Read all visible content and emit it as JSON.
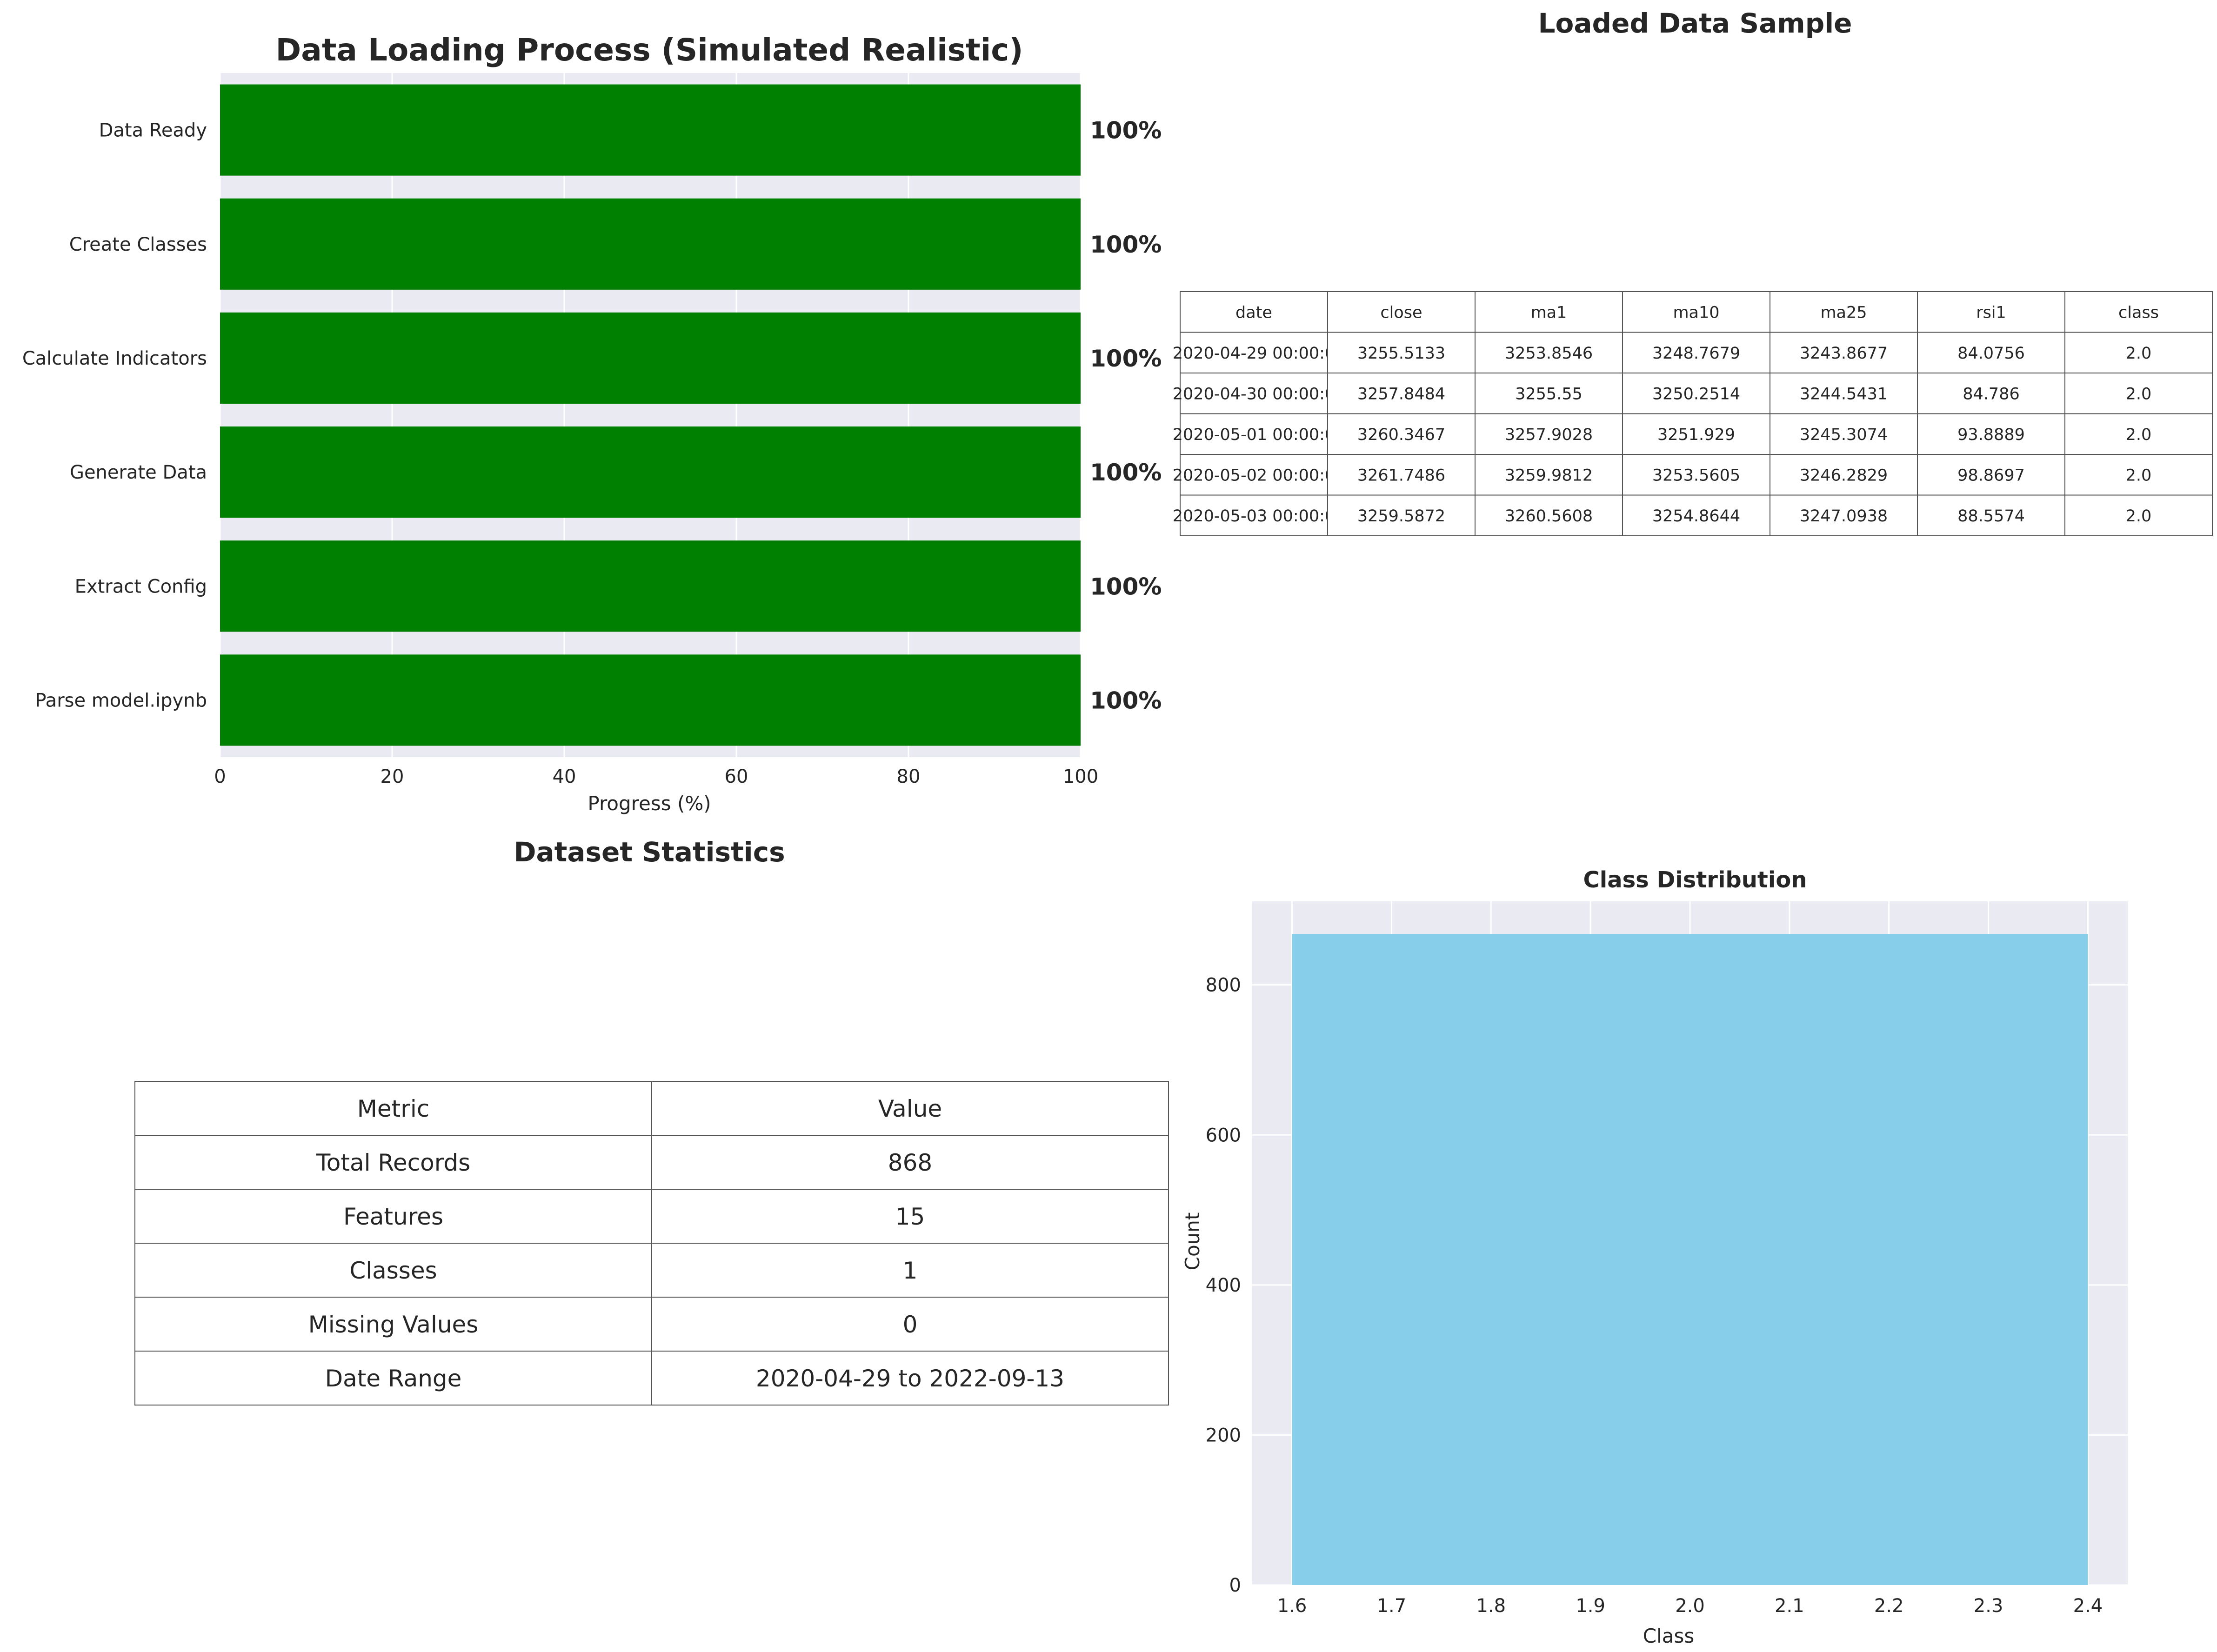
{
  "chart_data": [
    {
      "type": "bar",
      "orientation": "horizontal",
      "title": "Data Loading Process (Simulated Realistic)",
      "xlabel": "Progress (%)",
      "ylabel": "",
      "xlim": [
        0,
        100
      ],
      "xticks": [
        "0",
        "20",
        "40",
        "60",
        "80",
        "100"
      ],
      "categories": [
        "Parse model.ipynb",
        "Extract Config",
        "Generate Data",
        "Calculate Indicators",
        "Create Classes",
        "Data Ready"
      ],
      "values": [
        100,
        100,
        100,
        100,
        100,
        100
      ],
      "value_labels": [
        "100%",
        "100%",
        "100%",
        "100%",
        "100%",
        "100%"
      ],
      "bar_color": "#008000",
      "grid": true
    },
    {
      "type": "table",
      "title": "Loaded Data Sample",
      "columns": [
        "date",
        "close",
        "ma1",
        "ma10",
        "ma25",
        "rsi1",
        "class"
      ],
      "rows": [
        [
          "2020-04-29 00:00:0",
          "3255.5133",
          "3253.8546",
          "3248.7679",
          "3243.8677",
          "84.0756",
          "2.0"
        ],
        [
          "2020-04-30 00:00:0",
          "3257.8484",
          "3255.55",
          "3250.2514",
          "3244.5431",
          "84.786",
          "2.0"
        ],
        [
          "2020-05-01 00:00:0",
          "3260.3467",
          "3257.9028",
          "3251.929",
          "3245.3074",
          "93.8889",
          "2.0"
        ],
        [
          "2020-05-02 00:00:0",
          "3261.7486",
          "3259.9812",
          "3253.5605",
          "3246.2829",
          "98.8697",
          "2.0"
        ],
        [
          "2020-05-03 00:00:0",
          "3259.5872",
          "3260.5608",
          "3254.8644",
          "3247.0938",
          "88.5574",
          "2.0"
        ]
      ]
    },
    {
      "type": "table",
      "title": "Dataset Statistics",
      "columns": [
        "Metric",
        "Value"
      ],
      "rows": [
        [
          "Total Records",
          "868"
        ],
        [
          "Features",
          "15"
        ],
        [
          "Classes",
          "1"
        ],
        [
          "Missing Values",
          "0"
        ],
        [
          "Date Range",
          "2020-04-29 to 2022-09-13"
        ]
      ]
    },
    {
      "type": "bar",
      "title": "Class Distribution",
      "xlabel": "Class",
      "ylabel": "Count",
      "x": [
        2.0
      ],
      "values": [
        868
      ],
      "bar_range": [
        1.6,
        2.4
      ],
      "xlim": [
        1.56,
        2.44
      ],
      "ylim": [
        0,
        911.4
      ],
      "xticks": [
        "1.6",
        "1.7",
        "1.8",
        "1.9",
        "2.0",
        "2.1",
        "2.2",
        "2.3",
        "2.4"
      ],
      "yticks": [
        "0",
        "200",
        "400",
        "600",
        "800"
      ],
      "bar_color": "#87CEEB",
      "grid": true
    }
  ]
}
